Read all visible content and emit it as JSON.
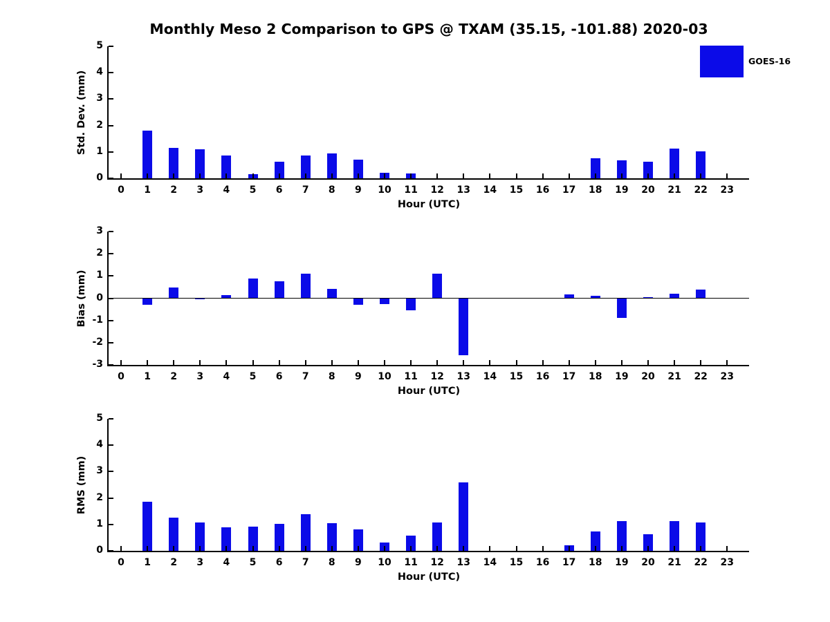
{
  "title": "Monthly Meso 2 Comparison to GPS @ TXAM (35.15, -101.88) 2020-03",
  "legend": {
    "label": "GOES-16",
    "color": "#0b0be8"
  },
  "chart_data": {
    "type": "bar",
    "title": "Monthly Meso 2 Comparison to GPS @ TXAM (35.15, -101.88) 2020-03",
    "series_name": "GOES-16",
    "bar_color": "#0b0be8",
    "x_label": "Hour (UTC)",
    "x": [
      0,
      1,
      2,
      3,
      4,
      5,
      6,
      7,
      8,
      9,
      10,
      11,
      12,
      13,
      14,
      15,
      16,
      17,
      18,
      19,
      20,
      21,
      22,
      23
    ],
    "legend_position": "upper right",
    "grid": false,
    "subplots": [
      {
        "ylabel": "Std. Dev. (mm)",
        "ylim": [
          0,
          5
        ],
        "yticks": [
          0,
          1,
          2,
          3,
          4,
          5
        ],
        "values": [
          0,
          1.8,
          1.16,
          1.1,
          0.87,
          0.16,
          0.64,
          0.87,
          0.95,
          0.71,
          0.21,
          0.18,
          0,
          0,
          0,
          0,
          0,
          0,
          0.76,
          0.68,
          0.62,
          1.12,
          1.01,
          0
        ]
      },
      {
        "ylabel": "Bias (mm)",
        "ylim": [
          -3,
          3
        ],
        "yticks": [
          -3,
          -2,
          -1,
          0,
          1,
          2,
          3
        ],
        "values": [
          0,
          -0.28,
          0.47,
          -0.02,
          0.15,
          0.9,
          0.76,
          1.1,
          0.43,
          -0.3,
          -0.26,
          -0.54,
          1.1,
          -2.55,
          0,
          0,
          0,
          0.18,
          0.1,
          -0.88,
          0.04,
          0.2,
          0.4,
          0
        ]
      },
      {
        "ylabel": "RMS (mm)",
        "ylim": [
          0,
          5
        ],
        "yticks": [
          0,
          1,
          2,
          3,
          4,
          5
        ],
        "values": [
          0,
          1.85,
          1.25,
          1.08,
          0.88,
          0.92,
          1.02,
          1.4,
          1.06,
          0.8,
          0.32,
          0.58,
          1.08,
          2.6,
          0,
          0,
          0,
          0.2,
          0.74,
          1.12,
          0.62,
          1.12,
          1.08,
          0
        ]
      }
    ]
  }
}
